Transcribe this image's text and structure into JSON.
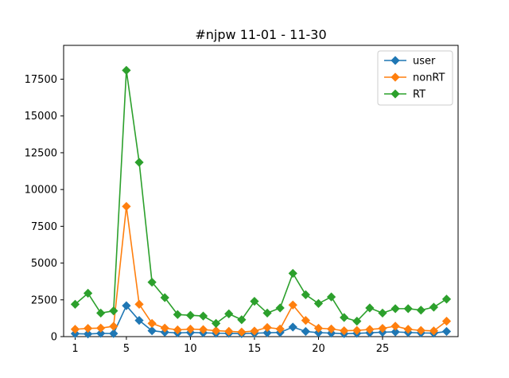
{
  "chart_data": {
    "type": "line",
    "title": "#njpw 11-01 - 11-30",
    "xlabel": "",
    "ylabel": "",
    "x": [
      1,
      2,
      3,
      4,
      5,
      6,
      7,
      8,
      9,
      10,
      11,
      12,
      13,
      14,
      15,
      16,
      17,
      18,
      19,
      20,
      21,
      22,
      23,
      24,
      25,
      26,
      27,
      28,
      29,
      30
    ],
    "xticks": [
      1,
      5,
      10,
      15,
      20,
      25
    ],
    "yticks": [
      0,
      2500,
      5000,
      7500,
      10000,
      12500,
      15000,
      17500
    ],
    "xlim": [
      0.1,
      30.9
    ],
    "ylim": [
      0,
      19800
    ],
    "grid": false,
    "legend_position": "top-right",
    "series": [
      {
        "name": "user",
        "color": "#1f77b4",
        "marker": "diamond",
        "values": [
          200,
          180,
          220,
          210,
          2100,
          1100,
          400,
          300,
          250,
          280,
          260,
          230,
          220,
          200,
          230,
          260,
          280,
          650,
          350,
          270,
          240,
          200,
          220,
          260,
          300,
          320,
          280,
          250,
          240,
          350
        ]
      },
      {
        "name": "nonRT",
        "color": "#ff7f0e",
        "marker": "diamond",
        "values": [
          500,
          560,
          580,
          700,
          8850,
          2200,
          900,
          580,
          460,
          510,
          480,
          400,
          360,
          310,
          380,
          620,
          520,
          2150,
          1100,
          570,
          520,
          400,
          420,
          490,
          560,
          710,
          500,
          420,
          390,
          1050
        ]
      },
      {
        "name": "RT",
        "color": "#2ca02c",
        "marker": "diamond",
        "values": [
          2200,
          2950,
          1600,
          1750,
          18100,
          11850,
          3700,
          2650,
          1500,
          1450,
          1400,
          900,
          1550,
          1150,
          2400,
          1600,
          1950,
          4300,
          2850,
          2250,
          2700,
          1300,
          1050,
          1950,
          1600,
          1900,
          1900,
          1800,
          2000,
          2550
        ]
      }
    ]
  }
}
